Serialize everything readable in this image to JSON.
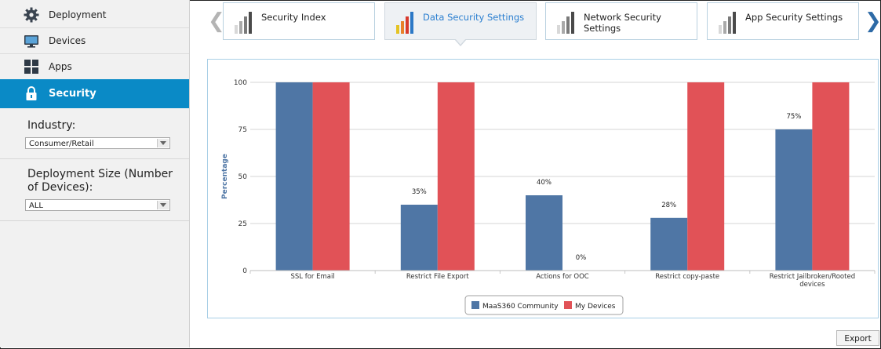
{
  "sidebar": {
    "items": [
      {
        "label": "Deployment",
        "icon": "gear-icon"
      },
      {
        "label": "Devices",
        "icon": "monitor-icon"
      },
      {
        "label": "Apps",
        "icon": "apps-grid-icon"
      },
      {
        "label": "Security",
        "icon": "lock-icon"
      }
    ],
    "industry_label": "Industry:",
    "industry_value": "Consumer/Retail",
    "size_label_line1": "Deployment Size (Number",
    "size_label_line2": "of Devices):",
    "size_value": "ALL"
  },
  "tabs": [
    {
      "label": "Security Index",
      "active": false
    },
    {
      "label": "Data Security Settings",
      "active": true
    },
    {
      "label": "Network Security Settings",
      "active": false
    },
    {
      "label": "App Security Settings",
      "active": false
    }
  ],
  "nav_arrows": {
    "prev": "❮",
    "next": "❯"
  },
  "colors": {
    "community": "#4f76a5",
    "my_devices": "#e15257",
    "accent": "#0a8ac6",
    "active_tab_text": "#2b7fd0"
  },
  "chart_data": {
    "type": "bar",
    "ylabel": "Percentage",
    "ylim": [
      0,
      100
    ],
    "yticks": [
      0,
      25,
      50,
      75,
      100
    ],
    "categories": [
      "SSL for Email",
      "Restrict File Export",
      "Actions for OOC",
      "Restrict copy-paste",
      "Restrict Jailbroken/Rooted devices"
    ],
    "series": [
      {
        "name": "MaaS360 Community",
        "values": [
          100,
          35,
          40,
          28,
          75
        ],
        "labels": [
          "",
          "35%",
          "40%",
          "28%",
          "75%"
        ]
      },
      {
        "name": "My Devices",
        "values": [
          100,
          100,
          0,
          100,
          100
        ],
        "labels": [
          "",
          "",
          "0%",
          "",
          ""
        ]
      }
    ],
    "grid": true,
    "legend": "bottom-center"
  },
  "export_label": "Export"
}
